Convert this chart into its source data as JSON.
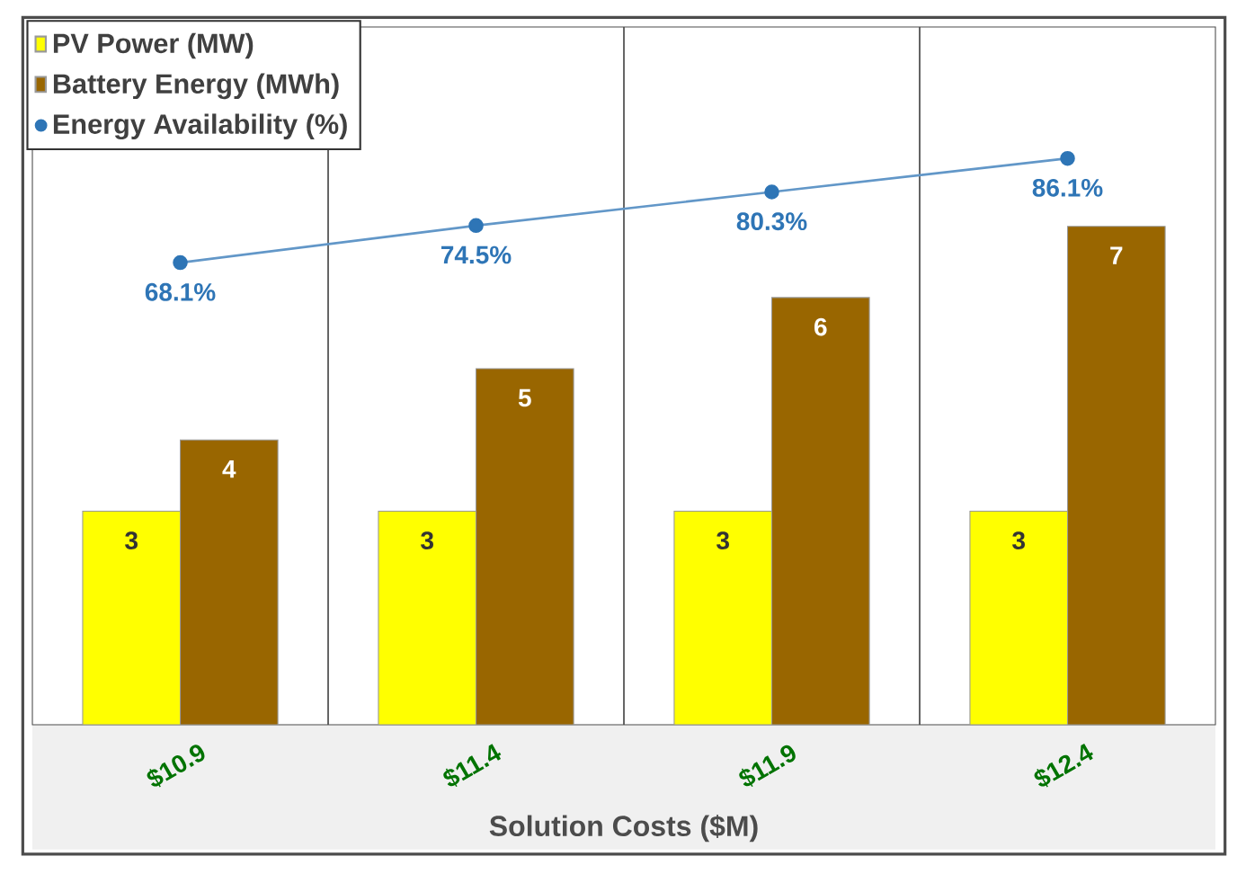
{
  "chart_data": {
    "type": "bar",
    "xlabel": "Solution Costs ($M)",
    "categories": [
      "$10.9",
      "$11.4",
      "$11.9",
      "$12.4"
    ],
    "series": [
      {
        "name": "PV Power (MW)",
        "color": "#ffff00",
        "values": [
          3,
          3,
          3,
          3
        ]
      },
      {
        "name": "Battery Energy (MWh)",
        "color": "#996600",
        "values": [
          4,
          5,
          6,
          7
        ]
      },
      {
        "name": "Energy Availability (%)",
        "type": "line",
        "axis": "y2",
        "color": "#2e75b6",
        "values": [
          68.1,
          74.5,
          80.3,
          86.1
        ],
        "value_labels": [
          "68.1%",
          "74.5%",
          "80.3%",
          "86.1%"
        ]
      }
    ],
    "ylim": [
      0,
      9.8
    ],
    "y2lim": [
      -11.7,
      108.8
    ],
    "data_labels": true,
    "grid": "x",
    "legend": "top left",
    "tick_labels": "x",
    "marker": "circle"
  }
}
